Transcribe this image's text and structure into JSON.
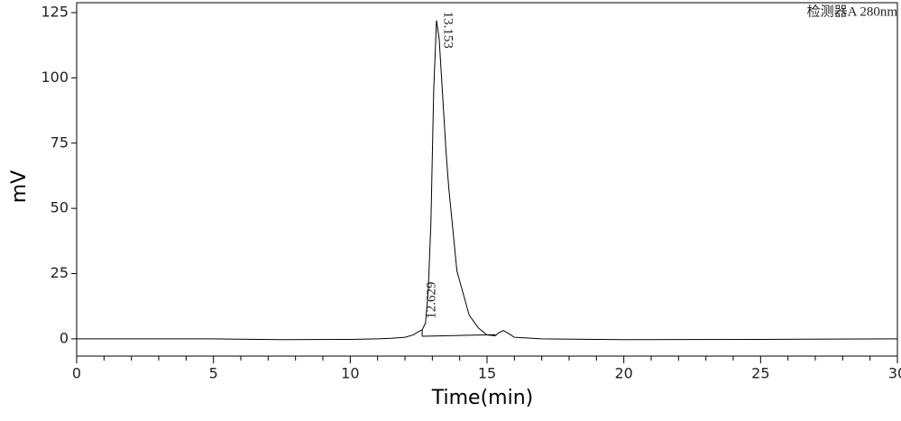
{
  "chart_data": {
    "type": "line",
    "xlabel": "Time(min)",
    "ylabel": "mV",
    "detector_label": "检测器A 280nm",
    "xlim": [
      0,
      30
    ],
    "ylim": [
      -6.6,
      128.8
    ],
    "xticks": [
      0,
      5,
      10,
      15,
      20,
      25,
      30
    ],
    "xminorticks": [
      1,
      2,
      3,
      4,
      6,
      7,
      8,
      9,
      11,
      12,
      13,
      14,
      16,
      17,
      18,
      19,
      21,
      22,
      23,
      24,
      26,
      27,
      28,
      29
    ],
    "yticks": [
      0,
      25,
      50,
      75,
      100,
      125
    ],
    "color": "#000000",
    "series": [
      {
        "x": [
          0,
          5,
          7.5,
          10,
          11,
          11.5,
          12,
          12.3,
          12.5,
          12.63,
          12.75,
          12.85,
          12.95,
          13.05,
          13.153,
          13.25,
          13.35,
          13.5,
          13.6,
          13.9,
          14.35,
          14.7,
          15,
          15.3,
          15.45,
          15.6,
          15.75,
          16,
          16.5,
          17,
          20,
          25,
          30
        ],
        "values": [
          0,
          0,
          -0.3,
          -0.2,
          0,
          0.2,
          0.6,
          1.5,
          2.8,
          3.5,
          6,
          18,
          45,
          95,
          122,
          115,
          98,
          72,
          58,
          26,
          9,
          4,
          1.5,
          1.2,
          2.5,
          3.2,
          2.3,
          0.6,
          0.3,
          0,
          -0.3,
          -0.2,
          0
        ]
      },
      {
        "x": [
          12.63,
          15.3
        ],
        "values": [
          1.0,
          1.6
        ]
      },
      {
        "x": [
          12.63,
          12.63
        ],
        "values": [
          1.0,
          3.5
        ]
      }
    ],
    "peak_labels": [
      {
        "x": 13.153,
        "y": 122,
        "label": "13.153"
      },
      {
        "x": 12.629,
        "y": 3.5,
        "label": "12.629"
      }
    ]
  }
}
